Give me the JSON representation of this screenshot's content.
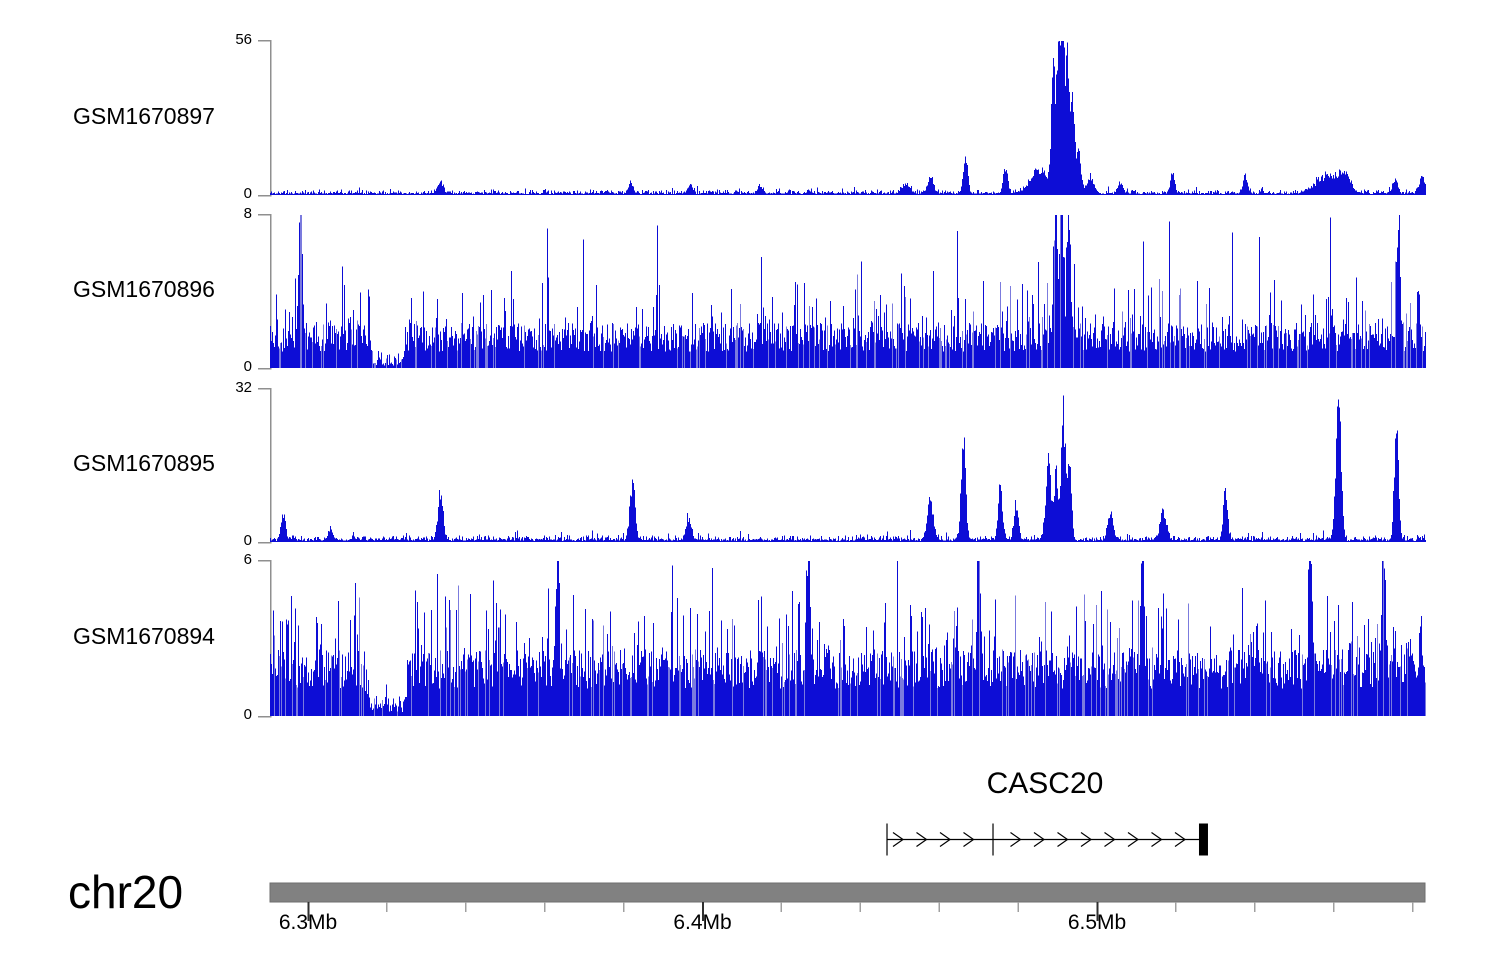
{
  "figure": {
    "background": "#ffffff",
    "signal_color": "#0d0dd6",
    "signal_color_light": "#7b7bde",
    "axis_bracket_color": "#8f8f8f",
    "ideogram_color": "#818181",
    "major_tick_color": "#2f2f2f",
    "minor_tick_color": "#a0a0a0",
    "text_color": "#000000"
  },
  "region": {
    "chromosome_label": "chr20",
    "start_mb": 6.2904,
    "end_mb": 6.5832,
    "axis": {
      "major_ticks": [
        {
          "mb": 6.3,
          "label": "6.3Mb"
        },
        {
          "mb": 6.4,
          "label": "6.4Mb"
        },
        {
          "mb": 6.5,
          "label": "6.5Mb"
        }
      ],
      "minor_tick_interval_mb": 0.02
    }
  },
  "chart_data": {
    "type": "area",
    "title": "",
    "x_units": "Mb",
    "x_range_mb": [
      6.2904,
      6.5832
    ],
    "grid": false,
    "legend": "none",
    "tracks": [
      {
        "name": "GSM1670897",
        "ymax": 56,
        "ymax_label": "56",
        "ymin_label": "0",
        "seed": 11,
        "gap_mb": null,
        "noise": {
          "mode": "sparse",
          "base": 0.55,
          "jitter": 1.2,
          "spike_prob": 0.1,
          "spike_amp": 2.0
        },
        "peaks": [
          [
            6.33346,
            5,
            2.5
          ],
          [
            6.38162,
            3.5,
            2.5
          ],
          [
            6.39683,
            3,
            2.5
          ],
          [
            6.41457,
            2.5,
            2.5
          ],
          [
            6.45133,
            3,
            4
          ],
          [
            6.45767,
            5,
            3
          ],
          [
            6.46654,
            13,
            2.2
          ],
          [
            6.47668,
            9,
            2.2
          ],
          [
            6.48555,
            8,
            9
          ],
          [
            6.48885,
            38,
            2
          ],
          [
            6.49011,
            50,
            1.8
          ],
          [
            6.49113,
            54,
            1.8
          ],
          [
            6.49239,
            44,
            2
          ],
          [
            6.49366,
            32,
            2
          ],
          [
            6.49518,
            14,
            2.5
          ],
          [
            6.49822,
            6,
            3
          ],
          [
            6.50583,
            4,
            2.5
          ],
          [
            6.51901,
            7,
            2.2
          ],
          [
            6.53751,
            6,
            2.2
          ],
          [
            6.55855,
            6,
            12
          ],
          [
            6.56286,
            5,
            5
          ],
          [
            6.57553,
            5.5,
            2.2
          ],
          [
            6.58237,
            6,
            3
          ]
        ]
      },
      {
        "name": "GSM1670896",
        "ymax": 8,
        "ymax_label": "8",
        "ymin_label": "0",
        "seed": 22,
        "gap_mb": [
          6.3165,
          6.3235
        ],
        "noise": {
          "mode": "dense",
          "base": 0.85,
          "jitter": 1.5,
          "spike_prob": 0.26,
          "spike_amp": 3.2,
          "tall_prob": 0.012,
          "tall_amp": 5.5
        },
        "peaks": [
          [
            6.29797,
            7.3,
            1.6
          ],
          [
            6.48935,
            8,
            1.6
          ],
          [
            6.49087,
            7.5,
            1.6
          ],
          [
            6.49264,
            7.3,
            1.6
          ],
          [
            6.57629,
            6.5,
            1.6
          ]
        ]
      },
      {
        "name": "GSM1670895",
        "ymax": 32,
        "ymax_label": "32",
        "ymin_label": "0",
        "seed": 33,
        "gap_mb": null,
        "noise": {
          "mode": "sparse",
          "base": 0.4,
          "jitter": 0.9,
          "spike_prob": 0.08,
          "spike_amp": 1.8
        },
        "peaks": [
          [
            6.29366,
            5,
            2.2
          ],
          [
            6.30558,
            2.5,
            2
          ],
          [
            6.33346,
            9,
            2.5
          ],
          [
            6.38213,
            12,
            2.5
          ],
          [
            6.39632,
            4.5,
            2.5
          ],
          [
            6.45767,
            8,
            3
          ],
          [
            6.46604,
            21,
            2.2
          ],
          [
            6.47541,
            10,
            2.2
          ],
          [
            6.47947,
            7.5,
            2
          ],
          [
            6.48758,
            18,
            2.5
          ],
          [
            6.48961,
            14,
            2
          ],
          [
            6.49139,
            26,
            2
          ],
          [
            6.4929,
            17,
            2
          ],
          [
            6.5033,
            6,
            2.5
          ],
          [
            6.51673,
            6,
            3
          ],
          [
            6.53244,
            11,
            2
          ],
          [
            6.56108,
            31.5,
            2.5
          ],
          [
            6.57578,
            25,
            2
          ]
        ]
      },
      {
        "name": "GSM1670894",
        "ymax": 6,
        "ymax_label": "6",
        "ymin_label": "0",
        "seed": 44,
        "gap_mb": [
          6.3155,
          6.324
        ],
        "noise": {
          "mode": "dense",
          "base": 1.05,
          "jitter": 1.5,
          "spike_prob": 0.32,
          "spike_amp": 2.7,
          "tall_prob": 0.01,
          "tall_amp": 4.2
        },
        "peaks": [
          [
            6.36311,
            5.5,
            1.6
          ],
          [
            6.42673,
            6,
            1.6
          ],
          [
            6.46984,
            5.2,
            1.6
          ],
          [
            6.51141,
            5,
            1.6
          ],
          [
            6.55399,
            5.2,
            1.6
          ],
          [
            6.57249,
            5.7,
            1.6
          ]
        ]
      }
    ],
    "gene_track": {
      "gene": "CASC20",
      "strand": "+",
      "arrow_direction": "right",
      "transcript_start_mb": 6.44677,
      "transcript_end_mb": 6.52813,
      "intron_line_mb": [
        6.44677,
        6.52686
      ],
      "boundary_ticks_mb": [
        6.44677,
        6.47364
      ],
      "end_exon_mb": [
        6.52585,
        6.52813
      ]
    }
  }
}
